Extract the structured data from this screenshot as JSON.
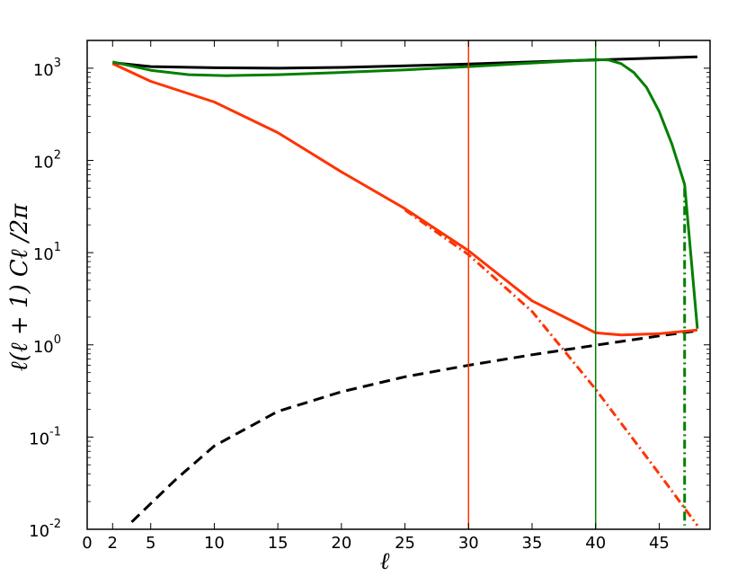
{
  "chart_data": {
    "type": "line",
    "title": "",
    "xlabel": "ℓ",
    "ylabel": "ℓ(ℓ + 1)  Cℓ /2π",
    "xlim": [
      0,
      49
    ],
    "ylim": [
      0.01,
      2000
    ],
    "yscale": "log",
    "grid": false,
    "legend": "none",
    "x_ticks": [
      0,
      2,
      5,
      10,
      15,
      20,
      25,
      30,
      35,
      40,
      45
    ],
    "x_tick_labels": [
      "0",
      "2",
      "5",
      "10",
      "15",
      "20",
      "25",
      "30",
      "35",
      "40",
      "45"
    ],
    "y_ticks": [
      {
        "value": 0.01,
        "base": "10",
        "exp": "-2"
      },
      {
        "value": 0.1,
        "base": "10",
        "exp": "-1"
      },
      {
        "value": 1,
        "base": "10",
        "exp": "0"
      },
      {
        "value": 10,
        "base": "10",
        "exp": "1"
      },
      {
        "value": 100,
        "base": "10",
        "exp": "2"
      },
      {
        "value": 1000,
        "base": "10",
        "exp": "3"
      }
    ],
    "vertical_lines": [
      {
        "x": 30,
        "color": "#ff3300"
      },
      {
        "x": 40,
        "color": "#008000"
      }
    ],
    "series": [
      {
        "color": "#000000",
        "style": "solid",
        "width": 3,
        "x": [
          2,
          5,
          10,
          15,
          20,
          25,
          30,
          35,
          40,
          45,
          48
        ],
        "y": [
          1150,
          1040,
          1010,
          1000,
          1020,
          1060,
          1110,
          1170,
          1230,
          1290,
          1330
        ]
      },
      {
        "color": "#000000",
        "style": "dashed",
        "width": 3,
        "x": [
          3.5,
          5,
          7,
          10,
          15,
          20,
          25,
          30,
          35,
          40,
          45,
          48
        ],
        "y": [
          0.012,
          0.019,
          0.035,
          0.08,
          0.19,
          0.31,
          0.45,
          0.6,
          0.78,
          0.99,
          1.25,
          1.42
        ]
      },
      {
        "color": "#ff3300",
        "style": "solid",
        "width": 3,
        "x": [
          2,
          5,
          10,
          15,
          20,
          25,
          30,
          35,
          40,
          42,
          45,
          48
        ],
        "y": [
          1120,
          720,
          430,
          200,
          75,
          30,
          10.5,
          3.0,
          1.35,
          1.28,
          1.32,
          1.45
        ]
      },
      {
        "color": "#ff3300",
        "style": "dashdot",
        "width": 3,
        "x": [
          25,
          30,
          35,
          40,
          45,
          48
        ],
        "y": [
          29,
          9.5,
          2.3,
          0.33,
          0.04,
          0.011
        ]
      },
      {
        "color": "#008000",
        "style": "solid",
        "width": 3,
        "x": [
          2,
          5,
          8,
          11,
          15,
          20,
          25,
          30,
          35,
          40,
          41,
          42,
          43,
          44,
          45,
          46,
          47,
          48
        ],
        "y": [
          1170,
          950,
          850,
          830,
          850,
          900,
          960,
          1040,
          1140,
          1240,
          1230,
          1120,
          900,
          620,
          340,
          150,
          55,
          1.5
        ]
      },
      {
        "color": "#008000",
        "style": "dashdot",
        "width": 3,
        "x": [
          47,
          47,
          47
        ],
        "y": [
          50,
          1,
          0.011
        ]
      }
    ]
  }
}
